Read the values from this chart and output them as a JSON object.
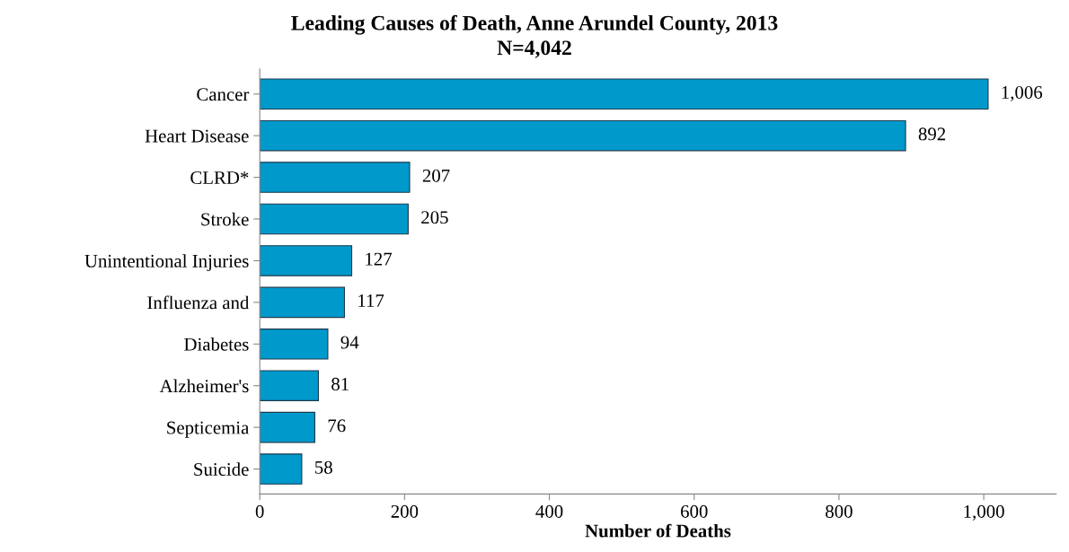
{
  "chart_data": {
    "type": "bar",
    "orientation": "horizontal",
    "title": "Leading Causes of Death, Anne Arundel County, 2013",
    "subtitle": "N=4,042",
    "xlabel": "Number of Deaths",
    "categories": [
      "Cancer",
      "Heart Disease",
      "CLRD*",
      "Stroke",
      "Unintentional Injuries",
      "Influenza and",
      "Diabetes",
      "Alzheimer's",
      "Septicemia",
      "Suicide"
    ],
    "values": [
      1006,
      892,
      207,
      205,
      127,
      117,
      94,
      81,
      76,
      58
    ],
    "value_labels": [
      "1,006",
      "892",
      "207",
      "205",
      "127",
      "117",
      "94",
      "81",
      "76",
      "58"
    ],
    "color": "#0099cc",
    "xlim": [
      0,
      1100
    ],
    "xticks": [
      0,
      200,
      400,
      600,
      800,
      {
        "value": 1000,
        "label": "1,000"
      }
    ],
    "grid": false,
    "legend": false
  }
}
